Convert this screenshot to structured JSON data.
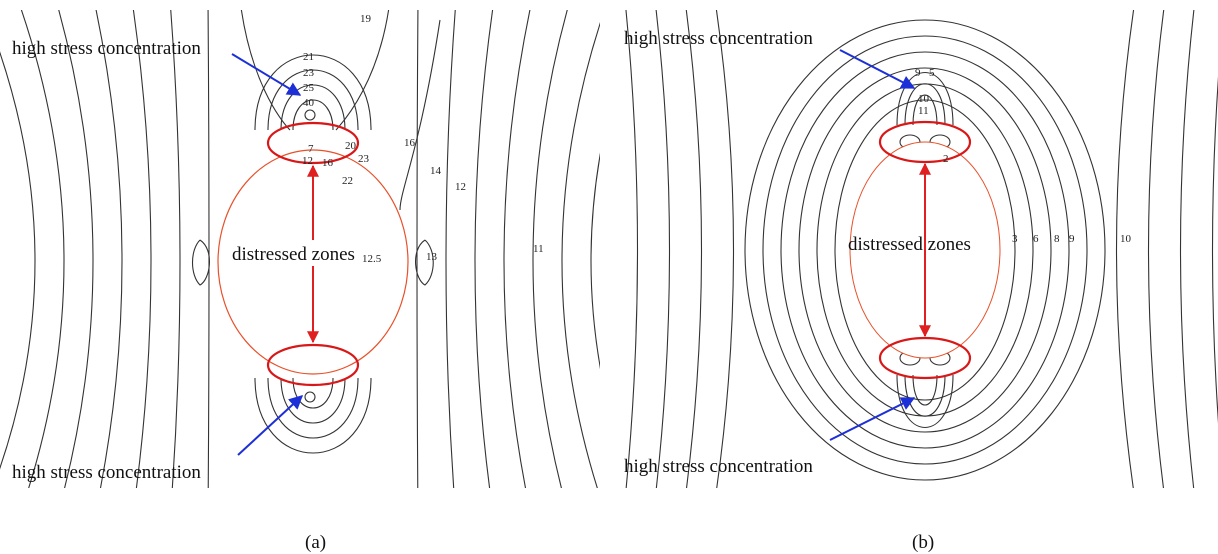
{
  "panel_a": {
    "top_label": "high stress concentration",
    "bottom_label": "high stress concentration",
    "zone_label": "distressed zones",
    "contour_labels": [
      "19",
      "21",
      "23",
      "25",
      "40",
      "7",
      "12",
      "16",
      "20",
      "23",
      "22",
      "16",
      "14",
      "12",
      "11",
      "12.5",
      "13"
    ],
    "caption": "(a)"
  },
  "panel_b": {
    "top_label": "high stress concentration",
    "bottom_label": "high stress concentration",
    "zone_label": "distressed zones",
    "contour_labels": [
      "9",
      "5",
      "10",
      "11",
      "2",
      "3",
      "6",
      "8",
      "9",
      "10"
    ],
    "caption": "(b)"
  }
}
